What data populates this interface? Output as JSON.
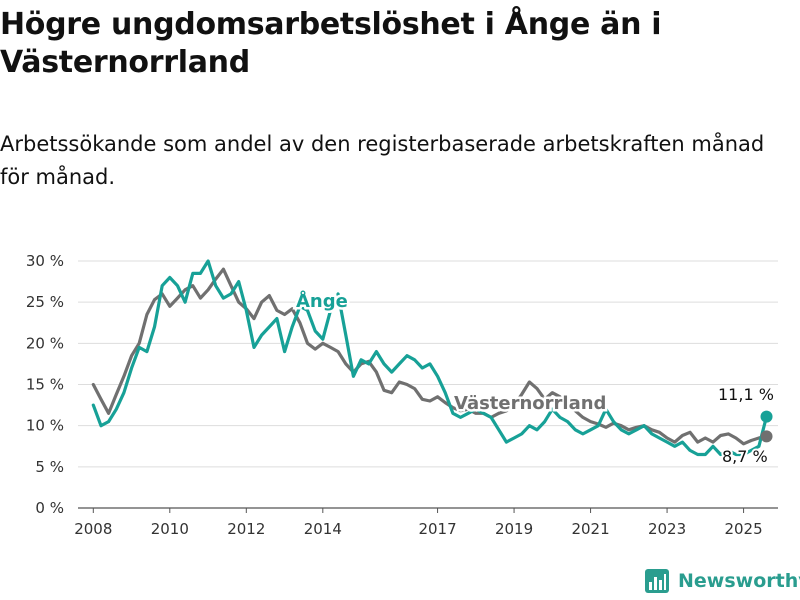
{
  "title": "Högre ungdomsarbetslöshet i Ånge än i Västernorrland",
  "subtitle": "Arbetssökande som andel av den registerbaserade arbetskraften månad för månad.",
  "brand": {
    "name": "Newsworthy",
    "icon": "newsworthy-bar-chart-icon",
    "color": "#2a9d8f"
  },
  "chart_data": {
    "type": "line",
    "title": "Högre ungdomsarbetslöshet i Ånge än i Västernorrland",
    "subtitle": "Arbetssökande som andel av den registerbaserade arbetskraften månad för månad.",
    "xlabel": "",
    "ylabel": "",
    "ylim": [
      0,
      30
    ],
    "xlim": [
      2007.6,
      2025.9
    ],
    "y_ticks": [
      0,
      5,
      10,
      15,
      20,
      25,
      30
    ],
    "y_tick_labels": [
      "0 %",
      "5 %",
      "10 %",
      "15 %",
      "20 %",
      "25 %",
      "30 %"
    ],
    "x_ticks": [
      2008,
      2010,
      2012,
      2014,
      2017,
      2019,
      2021,
      2023,
      2025
    ],
    "x_tick_labels": [
      "2008",
      "2010",
      "2012",
      "2014",
      "2017",
      "2019",
      "2021",
      "2023",
      "2025"
    ],
    "grid": "horizontal",
    "legend": "none (series labelled directly on lines)",
    "series": [
      {
        "name": "Västernorrland",
        "color": "#707070",
        "end_label": "8,7 %",
        "end_value": 8.7,
        "x": [
          2008.0,
          2008.2,
          2008.4,
          2008.6,
          2008.8,
          2009.0,
          2009.2,
          2009.4,
          2009.6,
          2009.8,
          2010.0,
          2010.2,
          2010.4,
          2010.6,
          2010.8,
          2011.0,
          2011.2,
          2011.4,
          2011.6,
          2011.8,
          2012.0,
          2012.2,
          2012.4,
          2012.6,
          2012.8,
          2013.0,
          2013.2,
          2013.4,
          2013.6,
          2013.8,
          2014.0,
          2014.2,
          2014.4,
          2014.6,
          2014.8,
          2015.0,
          2015.2,
          2015.4,
          2015.6,
          2015.8,
          2016.0,
          2016.2,
          2016.4,
          2016.6,
          2016.8,
          2017.0,
          2017.2,
          2017.4,
          2017.6,
          2017.8,
          2018.0,
          2018.2,
          2018.4,
          2018.6,
          2018.8,
          2019.0,
          2019.2,
          2019.4,
          2019.6,
          2019.8,
          2020.0,
          2020.2,
          2020.4,
          2020.6,
          2020.8,
          2021.0,
          2021.2,
          2021.4,
          2021.6,
          2021.8,
          2022.0,
          2022.2,
          2022.4,
          2022.6,
          2022.8,
          2023.0,
          2023.2,
          2023.4,
          2023.6,
          2023.8,
          2024.0,
          2024.2,
          2024.4,
          2024.6,
          2024.8,
          2025.0,
          2025.2,
          2025.4,
          2025.6
        ],
        "values": [
          15.0,
          13.2,
          11.5,
          13.8,
          16.0,
          18.5,
          20.0,
          23.5,
          25.3,
          26.0,
          24.5,
          25.5,
          26.5,
          27.0,
          25.5,
          26.5,
          27.8,
          29.0,
          27.0,
          25.0,
          24.2,
          23.0,
          25.0,
          25.8,
          24.0,
          23.5,
          24.2,
          22.5,
          20.0,
          19.3,
          20.0,
          19.5,
          19.0,
          17.5,
          16.5,
          17.5,
          17.8,
          16.5,
          14.3,
          14.0,
          15.3,
          15.0,
          14.5,
          13.2,
          13.0,
          13.5,
          12.8,
          12.2,
          11.8,
          12.0,
          11.5,
          11.5,
          11.0,
          11.5,
          11.8,
          12.5,
          13.8,
          15.3,
          14.5,
          13.2,
          14.0,
          13.5,
          12.5,
          11.8,
          11.0,
          10.5,
          10.2,
          9.8,
          10.3,
          10.0,
          9.5,
          9.8,
          10.0,
          9.5,
          9.2,
          8.5,
          8.0,
          8.8,
          9.2,
          8.0,
          8.5,
          8.0,
          8.8,
          9.0,
          8.5,
          7.8,
          8.2,
          8.5,
          8.7
        ]
      },
      {
        "name": "Ånge",
        "color": "#17a197",
        "end_label": "11,1 %",
        "end_value": 11.1,
        "x": [
          2008.0,
          2008.2,
          2008.4,
          2008.6,
          2008.8,
          2009.0,
          2009.2,
          2009.4,
          2009.6,
          2009.8,
          2010.0,
          2010.2,
          2010.4,
          2010.6,
          2010.8,
          2011.0,
          2011.2,
          2011.4,
          2011.6,
          2011.8,
          2012.0,
          2012.2,
          2012.4,
          2012.6,
          2012.8,
          2013.0,
          2013.2,
          2013.4,
          2013.6,
          2013.8,
          2014.0,
          2014.2,
          2014.4,
          2014.6,
          2014.8,
          2015.0,
          2015.2,
          2015.4,
          2015.6,
          2015.8,
          2016.0,
          2016.2,
          2016.4,
          2016.6,
          2016.8,
          2017.0,
          2017.2,
          2017.4,
          2017.6,
          2017.8,
          2018.0,
          2018.2,
          2018.4,
          2018.6,
          2018.8,
          2019.0,
          2019.2,
          2019.4,
          2019.6,
          2019.8,
          2020.0,
          2020.2,
          2020.4,
          2020.6,
          2020.8,
          2021.0,
          2021.2,
          2021.4,
          2021.6,
          2021.8,
          2022.0,
          2022.2,
          2022.4,
          2022.6,
          2022.8,
          2023.0,
          2023.2,
          2023.4,
          2023.6,
          2023.8,
          2024.0,
          2024.2,
          2024.4,
          2024.6,
          2024.8,
          2025.0,
          2025.2,
          2025.4,
          2025.6
        ],
        "values": [
          12.5,
          10.0,
          10.5,
          12.0,
          14.0,
          17.0,
          19.5,
          19.0,
          22.0,
          27.0,
          28.0,
          27.0,
          25.0,
          28.5,
          28.5,
          30.0,
          27.0,
          25.5,
          26.0,
          27.5,
          24.0,
          19.5,
          21.0,
          22.0,
          23.0,
          19.0,
          22.0,
          24.5,
          24.0,
          21.5,
          20.5,
          24.0,
          26.0,
          21.0,
          16.0,
          18.0,
          17.5,
          19.0,
          17.5,
          16.5,
          17.5,
          18.5,
          18.0,
          17.0,
          17.5,
          16.0,
          14.0,
          11.5,
          11.0,
          11.5,
          12.0,
          11.5,
          11.0,
          9.5,
          8.0,
          8.5,
          9.0,
          10.0,
          9.5,
          10.5,
          12.0,
          11.0,
          10.5,
          9.5,
          9.0,
          9.5,
          10.0,
          12.0,
          10.5,
          9.5,
          9.0,
          9.5,
          10.0,
          9.0,
          8.5,
          8.0,
          7.5,
          8.0,
          7.0,
          6.5,
          6.5,
          7.5,
          6.5,
          7.0,
          6.5,
          6.5,
          7.0,
          7.5,
          11.1
        ]
      }
    ]
  }
}
